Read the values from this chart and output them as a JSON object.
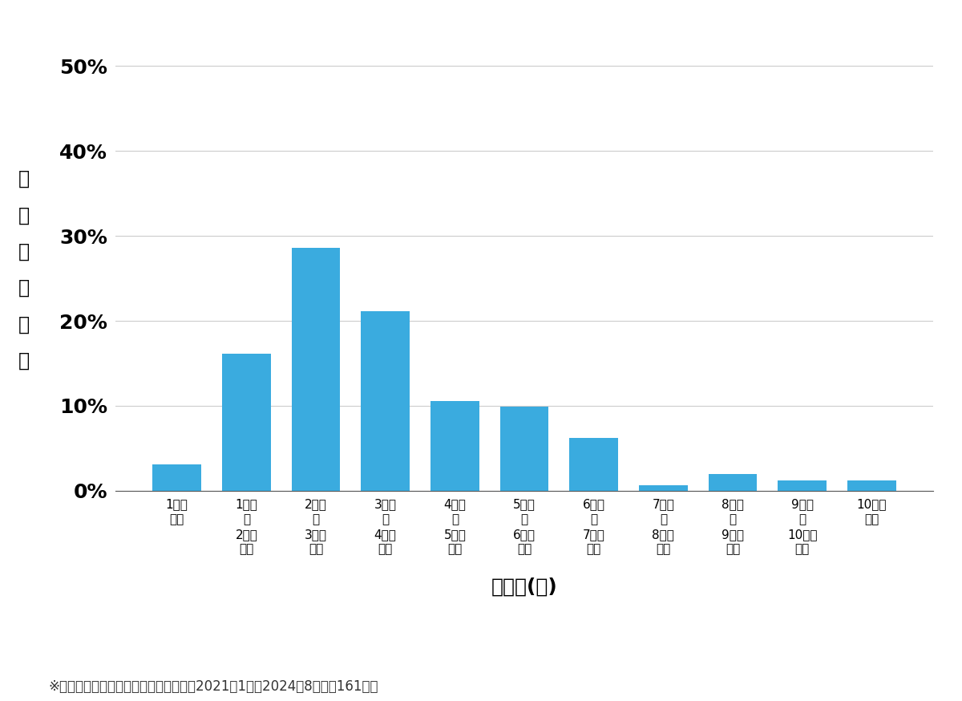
{
  "values": [
    3.1,
    16.1,
    28.6,
    21.1,
    10.6,
    9.9,
    6.2,
    0.6,
    2.0,
    1.2,
    1.2
  ],
  "bar_color": "#3aabdf",
  "categories": [
    "1万円\n未満",
    "1万円\n～\n2万円\n未満",
    "2万円\n～\n3万円\n未満",
    "3万円\n～\n4万円\n未満",
    "4万円\n～\n5万円\n未満",
    "5万円\n～\n6万円\n未満",
    "6万円\n～\n7万円\n未満",
    "7万円\n～\n8万円\n未満",
    "8万円\n～\n9万円\n未満",
    "9万円\n～\n10万円\n未満",
    "10万円\n以上"
  ],
  "ylabel_chars": [
    "価",
    "格",
    "帯",
    "の",
    "割",
    "合"
  ],
  "xlabel": "価格帯(円)",
  "yticks": [
    0,
    10,
    20,
    30,
    40,
    50
  ],
  "ylim": [
    0,
    52
  ],
  "footnote": "※弊社受付の案件を対象に集計（期間：2021年1月～2024年8月、訟161件）",
  "background_color": "#ffffff",
  "grid_color": "#cccccc",
  "ytick_fontsize": 18,
  "xtick_fontsize": 11,
  "ylabel_fontsize": 17,
  "xlabel_fontsize": 18,
  "footnote_fontsize": 12
}
